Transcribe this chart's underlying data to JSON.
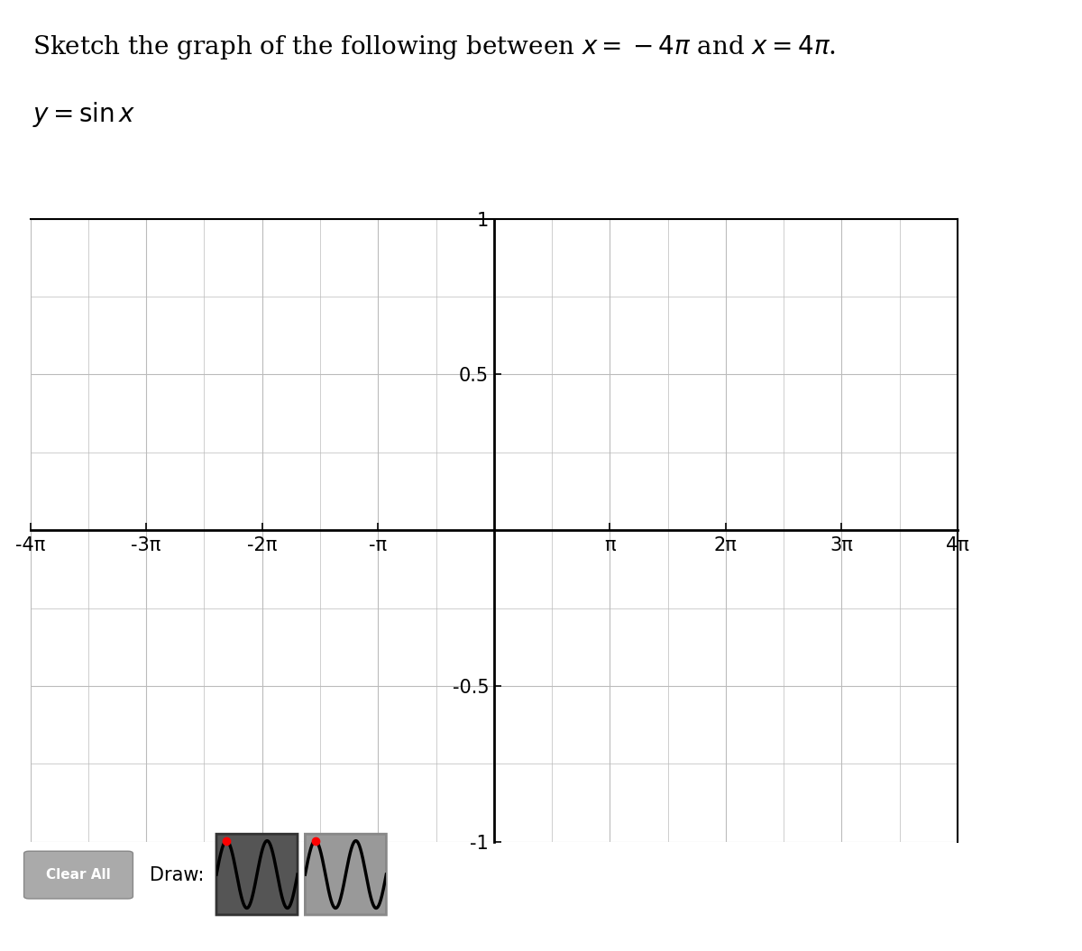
{
  "title_text": "Sketch the graph of the following between $x =  - 4\\pi$ and $x = 4\\pi$.",
  "subtitle_text": "$y = \\sin x$",
  "xlim_pi": [
    -4,
    4
  ],
  "ylim": [
    -1,
    1
  ],
  "x_ticks_pi_vals": [
    -4,
    -3,
    -2,
    -1,
    1,
    2,
    3,
    4
  ],
  "x_tick_labels": [
    "-4π",
    "-3π",
    "-2π",
    "-π",
    "π",
    "2π",
    "3π",
    "4π"
  ],
  "y_ticks": [
    1.0,
    0.5,
    -0.5,
    -1.0
  ],
  "y_tick_labels": [
    "1",
    "0.5",
    "-0.5",
    "-1"
  ],
  "grid_color": "#bbbbbb",
  "axis_color": "#000000",
  "background_color": "#ffffff",
  "border_color": "#000000",
  "orange_bar_color": "#e8a020",
  "orange_bg_color": "#fdf0d0",
  "title_fontsize": 20,
  "subtitle_fontsize": 20,
  "tick_fontsize": 15,
  "button_bg": "#999999",
  "clear_btn_bg": "#aaaaaa",
  "icon1_bg": "#555555",
  "icon2_bg": "#999999"
}
